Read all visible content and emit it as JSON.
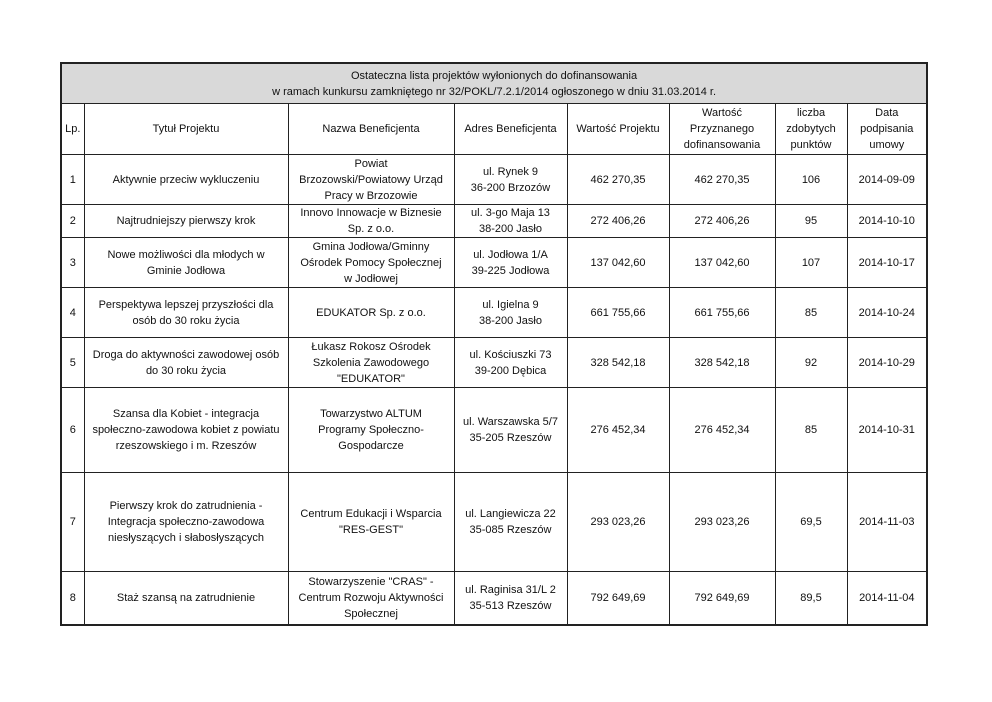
{
  "title": {
    "line1": "Ostateczna lista projektów wyłonionych do dofinansowania",
    "line2": "w ramach kunkursu zamkniętego nr 32/POKL/7.2.1/2014 ogłoszonego w dniu 31.03.2014 r."
  },
  "headers": [
    "Lp.",
    "Tytuł Projektu",
    "Nazwa Beneficjenta",
    "Adres Beneficjenta",
    "Wartość Projektu",
    "Wartość\nPrzyznanego\ndofinansowania",
    "liczba\nzdobytych\npunktów",
    "Data\npodpisania\numowy"
  ],
  "rows": [
    {
      "lp": "1",
      "title": "Aktywnie przeciw wykluczeniu",
      "beneficiary": "Powiat\nBrzozowski/Powiatowy Urząd\nPracy w Brzozowie",
      "address": "ul. Rynek 9\n36-200 Brzozów",
      "value": "462 270,35",
      "granted": "462 270,35",
      "points": "106",
      "date": "2014-09-09"
    },
    {
      "lp": "2",
      "title": "Najtrudniejszy pierwszy krok",
      "beneficiary": "Innovo Innowacje w Biznesie\nSp. z o.o.",
      "address": "ul. 3-go Maja 13\n38-200 Jasło",
      "value": "272 406,26",
      "granted": "272 406,26",
      "points": "95",
      "date": "2014-10-10"
    },
    {
      "lp": "3",
      "title": "Nowe możliwości dla młodych w\nGminie Jodłowa",
      "beneficiary": "Gmina Jodłowa/Gminny\nOśrodek Pomocy Społecznej\nw Jodłowej",
      "address": "ul. Jodłowa 1/A\n39-225 Jodłowa",
      "value": "137 042,60",
      "granted": "137 042,60",
      "points": "107",
      "date": "2014-10-17"
    },
    {
      "lp": "4",
      "title": "Perspektywa lepszej przyszłości dla\nosób do 30 roku życia",
      "beneficiary": "EDUKATOR Sp. z o.o.",
      "address": "ul. Igielna 9\n38-200 Jasło",
      "value": "661 755,66",
      "granted": "661 755,66",
      "points": "85",
      "date": "2014-10-24"
    },
    {
      "lp": "5",
      "title": "Droga do aktywności zawodowej osób\ndo 30 roku życia",
      "beneficiary": "Łukasz Rokosz Ośrodek\nSzkolenia Zawodowego\n\"EDUKATOR\"",
      "address": "ul. Kościuszki 73\n39-200 Dębica",
      "value": "328 542,18",
      "granted": "328 542,18",
      "points": "92",
      "date": "2014-10-29"
    },
    {
      "lp": "6",
      "title": "Szansa dla Kobiet - integracja\nspołeczno-zawodowa kobiet z powiatu\nrzeszowskiego i m. Rzeszów",
      "beneficiary": "Towarzystwo ALTUM\nProgramy Społeczno-\nGospodarcze",
      "address": "ul. Warszawska 5/7\n35-205 Rzeszów",
      "value": "276 452,34",
      "granted": "276 452,34",
      "points": "85",
      "date": "2014-10-31"
    },
    {
      "lp": "7",
      "title": "Pierwszy krok do zatrudnienia -\nIntegracja społeczno-zawodowa\nniesłyszących i słabosłyszących",
      "beneficiary": "Centrum Edukacji i Wsparcia\n\"RES-GEST\"",
      "address": "ul. Langiewicza 22\n35-085 Rzeszów",
      "value": "293 023,26",
      "granted": "293 023,26",
      "points": "69,5",
      "date": "2014-11-03"
    },
    {
      "lp": "8",
      "title": "Staż szansą na zatrudnienie",
      "beneficiary": "Stowarzyszenie \"CRAS\" -\nCentrum Rozwoju Aktywności\nSpołecznej",
      "address": "ul. Raginisa 31/L 2\n35-513 Rzeszów",
      "value": "792 649,69",
      "granted": "792 649,69",
      "points": "89,5",
      "date": "2014-11-04"
    }
  ]
}
